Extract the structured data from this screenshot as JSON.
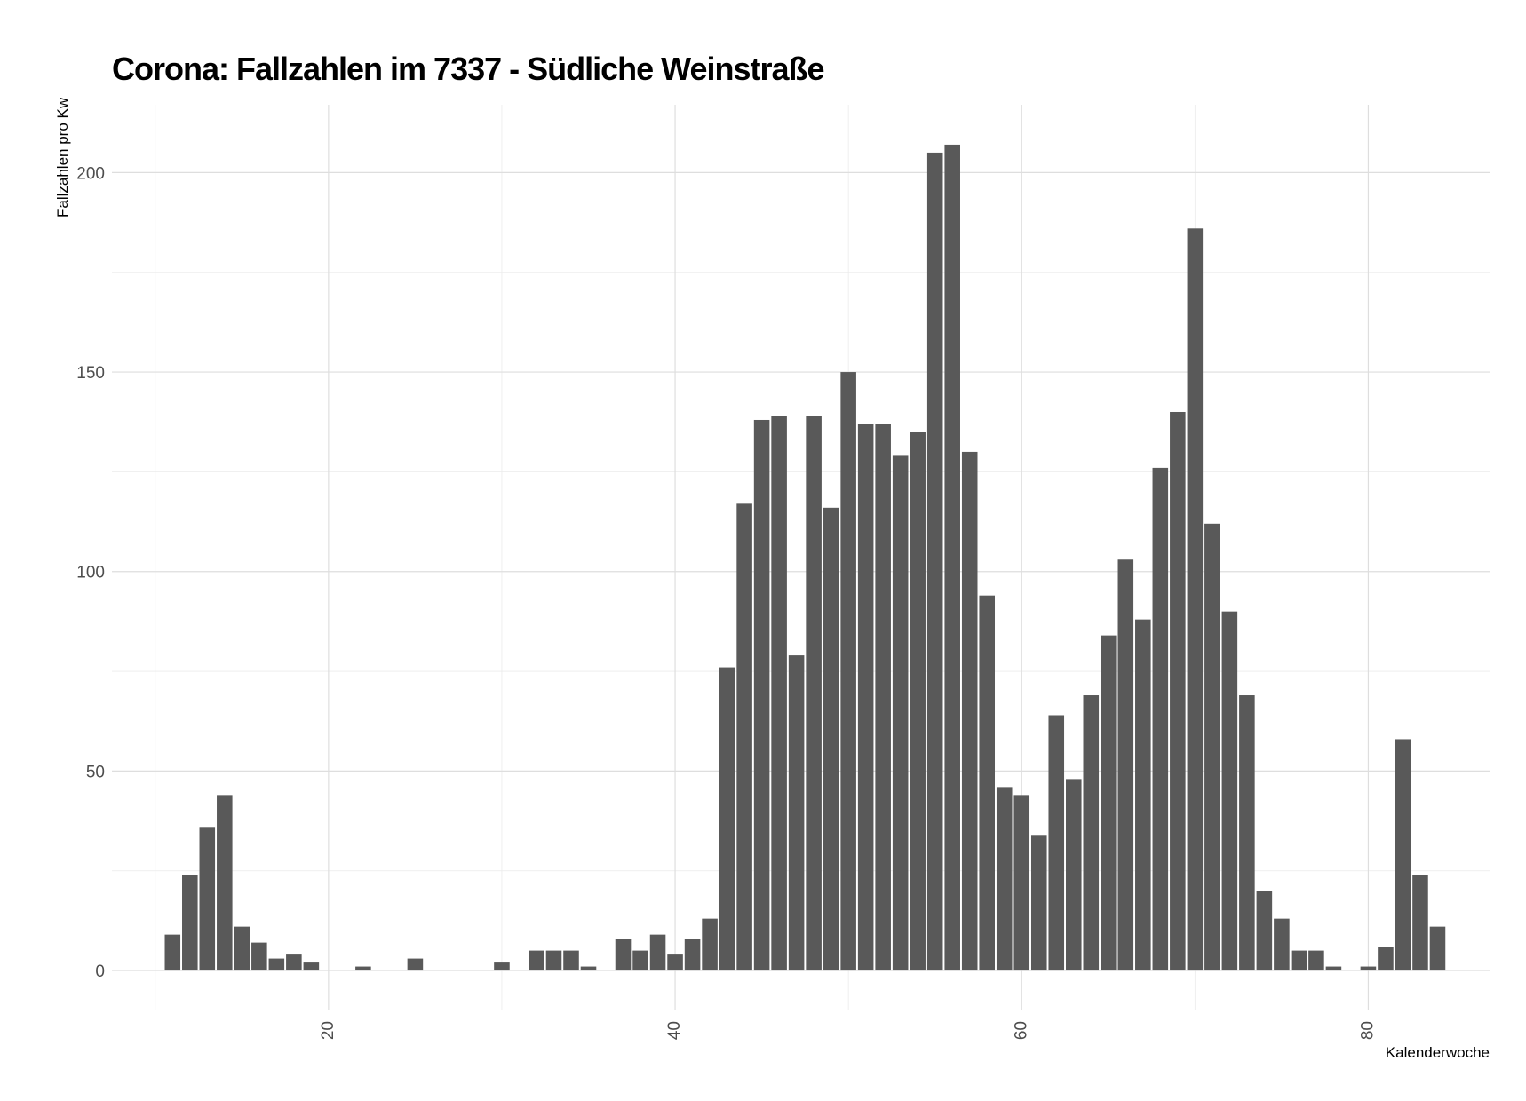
{
  "chart_data": {
    "type": "bar",
    "title": "Corona: Fallzahlen im 7337 - Südliche Weinstraße",
    "xlabel": "Kalenderwoche",
    "ylabel": "Fallzahlen pro Kw",
    "xlim": [
      7.5,
      87
    ],
    "ylim": [
      -10,
      217
    ],
    "x_ticks": [
      20,
      40,
      60,
      80
    ],
    "y_ticks": [
      0,
      50,
      100,
      150,
      200
    ],
    "bar_color": "#595959",
    "grid": true,
    "x": [
      11,
      12,
      13,
      14,
      15,
      16,
      17,
      18,
      19,
      22,
      25,
      30,
      32,
      33,
      34,
      35,
      37,
      38,
      39,
      40,
      41,
      42,
      43,
      44,
      45,
      46,
      47,
      48,
      49,
      50,
      51,
      52,
      53,
      54,
      55,
      56,
      57,
      58,
      59,
      60,
      61,
      62,
      63,
      64,
      65,
      66,
      67,
      68,
      69,
      70,
      71,
      72,
      73,
      74,
      75,
      76,
      77,
      78,
      80,
      81,
      82,
      83,
      84
    ],
    "values": [
      9,
      24,
      36,
      44,
      11,
      7,
      3,
      4,
      2,
      1,
      3,
      2,
      5,
      5,
      5,
      1,
      8,
      5,
      9,
      4,
      8,
      13,
      76,
      117,
      138,
      139,
      79,
      139,
      116,
      150,
      137,
      137,
      129,
      135,
      205,
      207,
      130,
      94,
      46,
      44,
      34,
      64,
      48,
      69,
      84,
      103,
      88,
      126,
      140,
      186,
      112,
      90,
      69,
      20,
      13,
      5,
      5,
      1,
      1,
      6,
      58,
      24,
      11
    ]
  }
}
